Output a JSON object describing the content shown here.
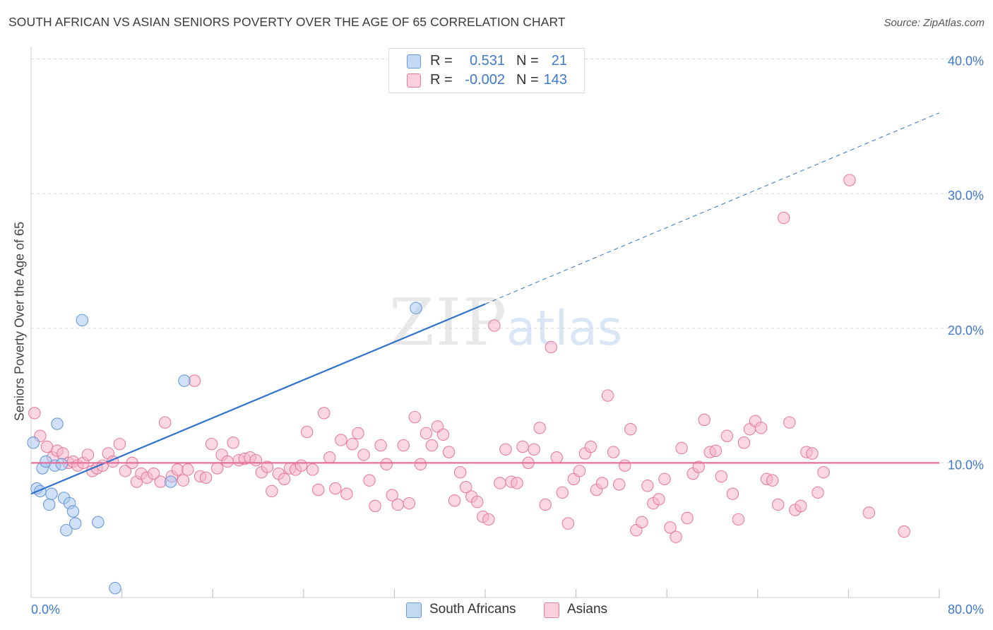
{
  "header": {
    "title": "SOUTH AFRICAN VS ASIAN SENIORS POVERTY OVER THE AGE OF 65 CORRELATION CHART",
    "source": "Source: ZipAtlas.com"
  },
  "legend": {
    "rows": [
      {
        "r_label": "R =",
        "r_value": "0.531",
        "n_label": "N =",
        "n_value": "21"
      },
      {
        "r_label": "R =",
        "r_value": "-0.002",
        "n_label": "N =",
        "n_value": "143"
      }
    ]
  },
  "colors": {
    "blue_fill": "#a9c7f0",
    "blue_stroke": "#6b9ad9",
    "blue_line": "#2f72cc",
    "pink_fill": "#f6b7cb",
    "pink_stroke": "#e67f9f",
    "pink_line": "#e5709a",
    "tick_text": "#3f79cc",
    "grid": "#d9d9d9"
  },
  "chart_data": {
    "type": "scatter",
    "title": "SOUTH AFRICAN VS ASIAN SENIORS POVERTY OVER THE AGE OF 65 CORRELATION CHART",
    "xlabel": "",
    "ylabel": "Seniors Poverty Over the Age of 65",
    "xlim": [
      0,
      80
    ],
    "ylim": [
      0,
      40.5
    ],
    "x_tick_labels": [
      "0.0%",
      "80.0%"
    ],
    "y_ticks": [
      10,
      20,
      30,
      40
    ],
    "y_tick_labels": [
      "10.0%",
      "20.0%",
      "30.0%",
      "40.0%"
    ],
    "watermark": {
      "part1": "ZIP",
      "part2": "atlas"
    },
    "series": [
      {
        "name": "South Africans",
        "R": 0.531,
        "N": 21,
        "trend": {
          "x0": 0,
          "y0": 7.7,
          "x1": 40,
          "y1": 21.8,
          "dashed_to_x": 80,
          "dashed_to_y": 36.0
        },
        "points": [
          [
            0.2,
            11.5
          ],
          [
            0.5,
            8.1
          ],
          [
            0.8,
            7.9
          ],
          [
            1.0,
            9.6
          ],
          [
            1.3,
            10.1
          ],
          [
            1.6,
            6.9
          ],
          [
            1.8,
            7.7
          ],
          [
            2.1,
            9.8
          ],
          [
            2.3,
            12.9
          ],
          [
            2.7,
            9.9
          ],
          [
            2.9,
            7.4
          ],
          [
            3.1,
            5.0
          ],
          [
            3.4,
            7.0
          ],
          [
            3.7,
            6.4
          ],
          [
            3.9,
            5.5
          ],
          [
            4.5,
            20.6
          ],
          [
            5.9,
            5.6
          ],
          [
            7.4,
            0.7
          ],
          [
            12.3,
            8.6
          ],
          [
            13.5,
            16.1
          ],
          [
            33.9,
            21.5
          ]
        ]
      },
      {
        "name": "Asians",
        "R": -0.002,
        "N": 143,
        "trend": {
          "x0": 0,
          "y0": 10.0,
          "x1": 80,
          "y1": 10.0
        },
        "points": [
          [
            0.3,
            13.7
          ],
          [
            0.8,
            12.0
          ],
          [
            1.4,
            11.2
          ],
          [
            1.9,
            10.4
          ],
          [
            2.3,
            10.9
          ],
          [
            2.8,
            10.7
          ],
          [
            3.3,
            10.0
          ],
          [
            3.7,
            10.1
          ],
          [
            4.1,
            9.8
          ],
          [
            4.6,
            10.0
          ],
          [
            5.0,
            10.6
          ],
          [
            5.4,
            9.4
          ],
          [
            5.8,
            9.6
          ],
          [
            6.3,
            9.8
          ],
          [
            6.8,
            10.7
          ],
          [
            7.2,
            10.1
          ],
          [
            7.8,
            11.4
          ],
          [
            8.3,
            9.4
          ],
          [
            8.9,
            10.0
          ],
          [
            9.3,
            8.6
          ],
          [
            9.7,
            9.2
          ],
          [
            10.2,
            8.9
          ],
          [
            10.8,
            9.2
          ],
          [
            11.4,
            8.6
          ],
          [
            11.8,
            13.0
          ],
          [
            12.4,
            9.0
          ],
          [
            12.9,
            9.5
          ],
          [
            13.4,
            8.7
          ],
          [
            13.8,
            9.5
          ],
          [
            14.4,
            16.1
          ],
          [
            14.9,
            9.0
          ],
          [
            15.4,
            8.9
          ],
          [
            15.9,
            11.4
          ],
          [
            16.4,
            9.6
          ],
          [
            16.8,
            10.6
          ],
          [
            17.3,
            10.1
          ],
          [
            17.8,
            11.5
          ],
          [
            18.3,
            10.2
          ],
          [
            18.8,
            10.3
          ],
          [
            19.3,
            10.4
          ],
          [
            19.8,
            10.2
          ],
          [
            20.3,
            9.3
          ],
          [
            20.8,
            9.7
          ],
          [
            21.2,
            7.9
          ],
          [
            21.8,
            9.2
          ],
          [
            22.3,
            8.8
          ],
          [
            22.8,
            9.6
          ],
          [
            23.3,
            9.5
          ],
          [
            23.8,
            9.8
          ],
          [
            24.3,
            12.3
          ],
          [
            24.8,
            9.5
          ],
          [
            25.3,
            8.0
          ],
          [
            25.8,
            13.7
          ],
          [
            26.3,
            10.4
          ],
          [
            26.8,
            8.1
          ],
          [
            27.3,
            11.7
          ],
          [
            27.8,
            7.7
          ],
          [
            28.3,
            11.4
          ],
          [
            28.8,
            12.2
          ],
          [
            29.3,
            10.6
          ],
          [
            29.8,
            8.7
          ],
          [
            30.3,
            6.8
          ],
          [
            30.8,
            11.3
          ],
          [
            31.3,
            9.9
          ],
          [
            31.8,
            7.6
          ],
          [
            32.3,
            6.9
          ],
          [
            32.8,
            11.3
          ],
          [
            33.3,
            7.0
          ],
          [
            33.8,
            13.4
          ],
          [
            34.3,
            9.9
          ],
          [
            34.8,
            12.2
          ],
          [
            35.3,
            11.3
          ],
          [
            35.8,
            12.7
          ],
          [
            36.3,
            12.1
          ],
          [
            36.8,
            10.8
          ],
          [
            37.3,
            7.2
          ],
          [
            37.8,
            9.3
          ],
          [
            38.3,
            8.2
          ],
          [
            38.8,
            7.5
          ],
          [
            39.3,
            7.1
          ],
          [
            39.8,
            6.0
          ],
          [
            40.3,
            5.8
          ],
          [
            40.8,
            20.2
          ],
          [
            41.3,
            8.5
          ],
          [
            41.8,
            11.0
          ],
          [
            42.3,
            8.6
          ],
          [
            42.8,
            8.5
          ],
          [
            43.3,
            11.2
          ],
          [
            43.8,
            10.0
          ],
          [
            44.3,
            11.0
          ],
          [
            44.8,
            12.6
          ],
          [
            45.3,
            6.9
          ],
          [
            45.8,
            18.6
          ],
          [
            46.3,
            10.4
          ],
          [
            46.8,
            7.8
          ],
          [
            47.3,
            5.5
          ],
          [
            47.8,
            8.8
          ],
          [
            48.3,
            9.4
          ],
          [
            48.8,
            10.7
          ],
          [
            49.3,
            11.2
          ],
          [
            49.8,
            8.0
          ],
          [
            50.3,
            8.5
          ],
          [
            50.8,
            15.0
          ],
          [
            51.3,
            10.8
          ],
          [
            51.8,
            8.4
          ],
          [
            52.3,
            9.8
          ],
          [
            52.8,
            12.5
          ],
          [
            53.3,
            5.0
          ],
          [
            53.8,
            5.6
          ],
          [
            54.3,
            8.3
          ],
          [
            54.8,
            7.0
          ],
          [
            55.3,
            7.3
          ],
          [
            55.8,
            8.8
          ],
          [
            56.3,
            5.2
          ],
          [
            56.8,
            4.5
          ],
          [
            57.3,
            11.1
          ],
          [
            57.8,
            5.9
          ],
          [
            58.3,
            9.2
          ],
          [
            58.8,
            9.7
          ],
          [
            59.3,
            13.2
          ],
          [
            59.8,
            10.8
          ],
          [
            60.3,
            10.9
          ],
          [
            60.8,
            9.0
          ],
          [
            61.3,
            12.0
          ],
          [
            61.8,
            7.7
          ],
          [
            62.3,
            5.8
          ],
          [
            62.8,
            11.5
          ],
          [
            63.3,
            12.5
          ],
          [
            63.8,
            13.1
          ],
          [
            64.3,
            12.6
          ],
          [
            64.8,
            8.8
          ],
          [
            65.3,
            8.7
          ],
          [
            65.8,
            6.9
          ],
          [
            66.3,
            28.2
          ],
          [
            66.8,
            13.0
          ],
          [
            67.3,
            6.5
          ],
          [
            67.8,
            6.8
          ],
          [
            68.3,
            10.8
          ],
          [
            68.8,
            10.7
          ],
          [
            69.3,
            7.8
          ],
          [
            69.8,
            9.3
          ],
          [
            72.1,
            31.0
          ],
          [
            73.8,
            6.3
          ],
          [
            76.9,
            4.9
          ]
        ]
      }
    ]
  },
  "bottom_legend": [
    "South Africans",
    "Asians"
  ]
}
